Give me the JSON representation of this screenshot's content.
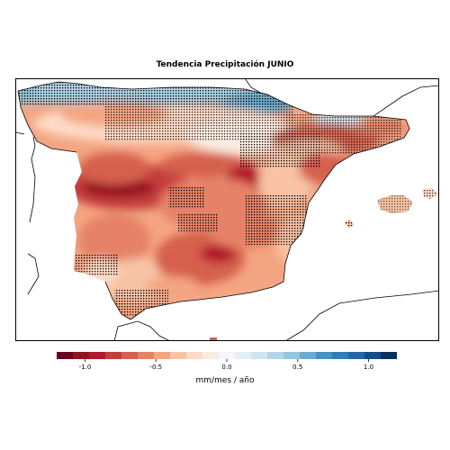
{
  "map": {
    "title": "Tendencia Precipitación JUNIO",
    "region": "Península Ibérica",
    "significance_marker": "stippling"
  },
  "colorbar": {
    "label": "mm/mes / año",
    "range": [
      -1.2,
      1.2
    ],
    "ticks": [
      {
        "value": -1.0,
        "label": "-1.0"
      },
      {
        "value": -0.5,
        "label": "-0.5"
      },
      {
        "value": 0.0,
        "label": "0.0"
      },
      {
        "value": 0.5,
        "label": "0.5"
      },
      {
        "value": 1.0,
        "label": "1.0"
      }
    ],
    "colors": [
      "#67001f",
      "#94101f",
      "#b2182b",
      "#c43c3c",
      "#d6604d",
      "#e58268",
      "#f4a582",
      "#f8c3a5",
      "#fddbc7",
      "#fbebe0",
      "#f7f7f7",
      "#e3eef5",
      "#d1e5f0",
      "#b3d5e8",
      "#92c5de",
      "#6aabd0",
      "#4393c3",
      "#2e7eb8",
      "#2166ac",
      "#134c8b",
      "#053061"
    ]
  }
}
